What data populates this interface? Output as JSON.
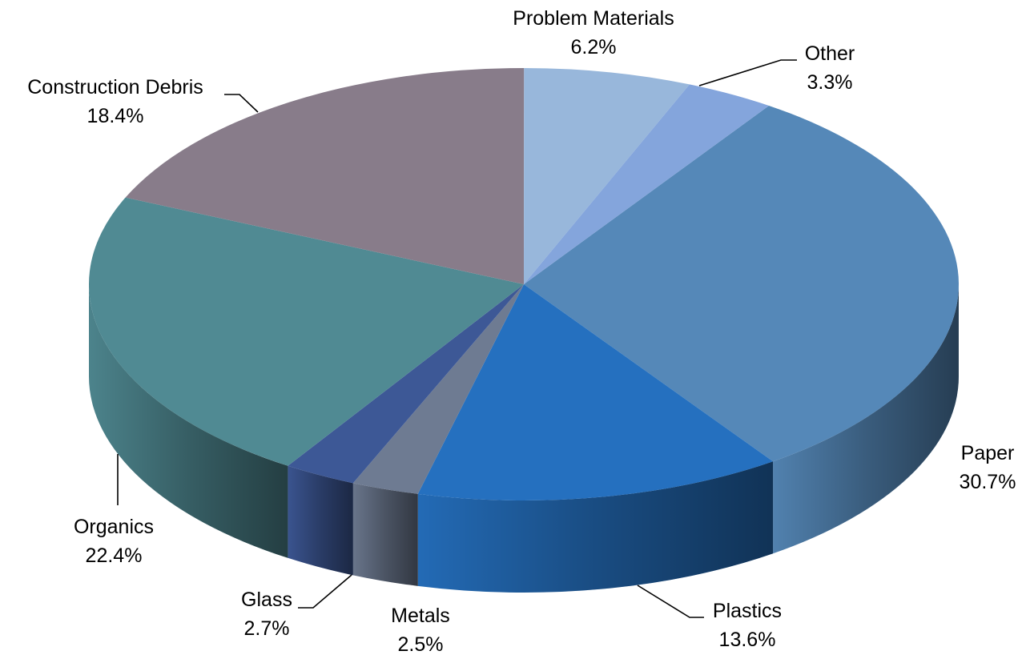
{
  "chart_data": {
    "type": "pie",
    "style": "3d",
    "categories": [
      "Paper",
      "Plastics",
      "Metals",
      "Glass",
      "Organics",
      "Construction Debris",
      "Problem Materials",
      "Other"
    ],
    "values": [
      30.7,
      13.6,
      2.5,
      2.7,
      22.4,
      18.4,
      6.2,
      3.3
    ],
    "value_labels": [
      "30.7%",
      "13.6%",
      "2.5%",
      "2.7%",
      "22.4%",
      "18.4%",
      "6.2%",
      "3.3%"
    ],
    "colors": [
      "#5588b8",
      "#2570bf",
      "#6e7b92",
      "#3d5896",
      "#508a93",
      "#887c8a",
      "#98b7db",
      "#84a5dc"
    ],
    "title": "",
    "legend": "none",
    "data_labels": "outside with leader lines"
  }
}
